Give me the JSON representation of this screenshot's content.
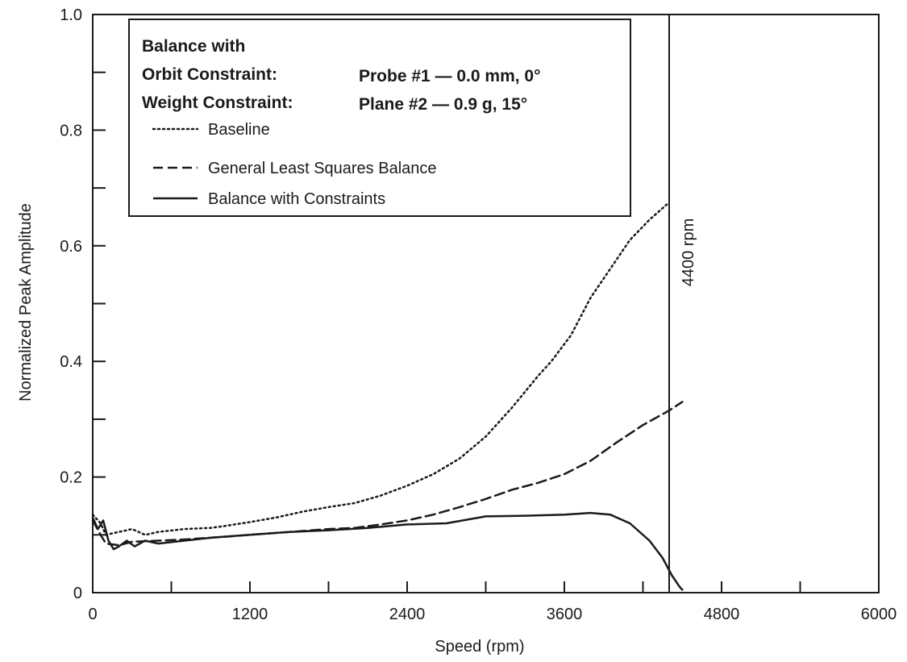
{
  "chart_data": {
    "type": "line",
    "title": "",
    "xlabel": "Speed (rpm)",
    "ylabel": "Normalized Peak Amplitude",
    "xlim": [
      0,
      6000
    ],
    "ylim": [
      0,
      1.0
    ],
    "x_major_ticks": [
      0,
      1200,
      2400,
      3600,
      4800,
      6000
    ],
    "x_tick_labels": [
      "0",
      "1200",
      "2400",
      "3600",
      "4800",
      "6000"
    ],
    "x_minor_ticks": [
      600,
      1800,
      3000,
      4200,
      5400
    ],
    "y_major_ticks": [
      0,
      0.2,
      0.4,
      0.6,
      0.8,
      1.0
    ],
    "y_tick_labels": [
      "0",
      "0.2",
      "0.4",
      "0.6",
      "0.8",
      "1.0"
    ],
    "y_minor_ticks": [
      0.1,
      0.3,
      0.5,
      0.7,
      0.9
    ],
    "grid": false,
    "legend_position": "top-left",
    "legend": {
      "heading_line1": "Balance with",
      "heading_line2_label": "Orbit Constraint:",
      "heading_line2_value": "Probe #1 — 0.0 mm, 0°",
      "heading_line3_label": "Weight Constraint:",
      "heading_line3_value": "Plane #2 — 0.9 g, 15°"
    },
    "annotations": [
      {
        "type": "vline",
        "x": 4400,
        "label": "4400 rpm"
      }
    ],
    "series": [
      {
        "name": "Baseline",
        "style": "dotted",
        "color": "#1a1a1a",
        "points": [
          [
            0,
            0.135
          ],
          [
            60,
            0.12
          ],
          [
            100,
            0.1
          ],
          [
            200,
            0.105
          ],
          [
            300,
            0.11
          ],
          [
            400,
            0.1
          ],
          [
            500,
            0.105
          ],
          [
            700,
            0.11
          ],
          [
            900,
            0.112
          ],
          [
            1000,
            0.115
          ],
          [
            1200,
            0.122
          ],
          [
            1400,
            0.13
          ],
          [
            1600,
            0.14
          ],
          [
            1800,
            0.148
          ],
          [
            2000,
            0.155
          ],
          [
            2200,
            0.168
          ],
          [
            2400,
            0.185
          ],
          [
            2600,
            0.205
          ],
          [
            2800,
            0.232
          ],
          [
            3000,
            0.27
          ],
          [
            3200,
            0.32
          ],
          [
            3400,
            0.375
          ],
          [
            3500,
            0.4
          ],
          [
            3650,
            0.445
          ],
          [
            3800,
            0.51
          ],
          [
            3950,
            0.56
          ],
          [
            4100,
            0.61
          ],
          [
            4250,
            0.645
          ],
          [
            4400,
            0.675
          ]
        ]
      },
      {
        "name": "General Least Squares Balance",
        "style": "dashed",
        "color": "#1a1a1a",
        "points": [
          [
            0,
            0.125
          ],
          [
            60,
            0.1
          ],
          [
            100,
            0.085
          ],
          [
            200,
            0.082
          ],
          [
            300,
            0.088
          ],
          [
            500,
            0.09
          ],
          [
            700,
            0.092
          ],
          [
            900,
            0.095
          ],
          [
            1200,
            0.1
          ],
          [
            1500,
            0.105
          ],
          [
            1800,
            0.11
          ],
          [
            2000,
            0.112
          ],
          [
            2200,
            0.118
          ],
          [
            2400,
            0.125
          ],
          [
            2600,
            0.135
          ],
          [
            2800,
            0.148
          ],
          [
            3000,
            0.162
          ],
          [
            3200,
            0.178
          ],
          [
            3400,
            0.19
          ],
          [
            3600,
            0.205
          ],
          [
            3800,
            0.228
          ],
          [
            4000,
            0.26
          ],
          [
            4200,
            0.29
          ],
          [
            4400,
            0.315
          ],
          [
            4500,
            0.33
          ]
        ]
      },
      {
        "name": "Balance with Constraints",
        "style": "solid",
        "color": "#1a1a1a",
        "points": [
          [
            0,
            0.13
          ],
          [
            40,
            0.11
          ],
          [
            80,
            0.125
          ],
          [
            120,
            0.09
          ],
          [
            160,
            0.075
          ],
          [
            200,
            0.08
          ],
          [
            260,
            0.09
          ],
          [
            320,
            0.08
          ],
          [
            400,
            0.09
          ],
          [
            500,
            0.085
          ],
          [
            700,
            0.09
          ],
          [
            900,
            0.095
          ],
          [
            1200,
            0.1
          ],
          [
            1500,
            0.105
          ],
          [
            1800,
            0.108
          ],
          [
            2100,
            0.112
          ],
          [
            2400,
            0.118
          ],
          [
            2700,
            0.12
          ],
          [
            3000,
            0.132
          ],
          [
            3300,
            0.133
          ],
          [
            3600,
            0.135
          ],
          [
            3800,
            0.138
          ],
          [
            3950,
            0.135
          ],
          [
            4100,
            0.12
          ],
          [
            4250,
            0.09
          ],
          [
            4350,
            0.06
          ],
          [
            4420,
            0.03
          ],
          [
            4480,
            0.01
          ],
          [
            4500,
            0.005
          ]
        ]
      }
    ]
  }
}
